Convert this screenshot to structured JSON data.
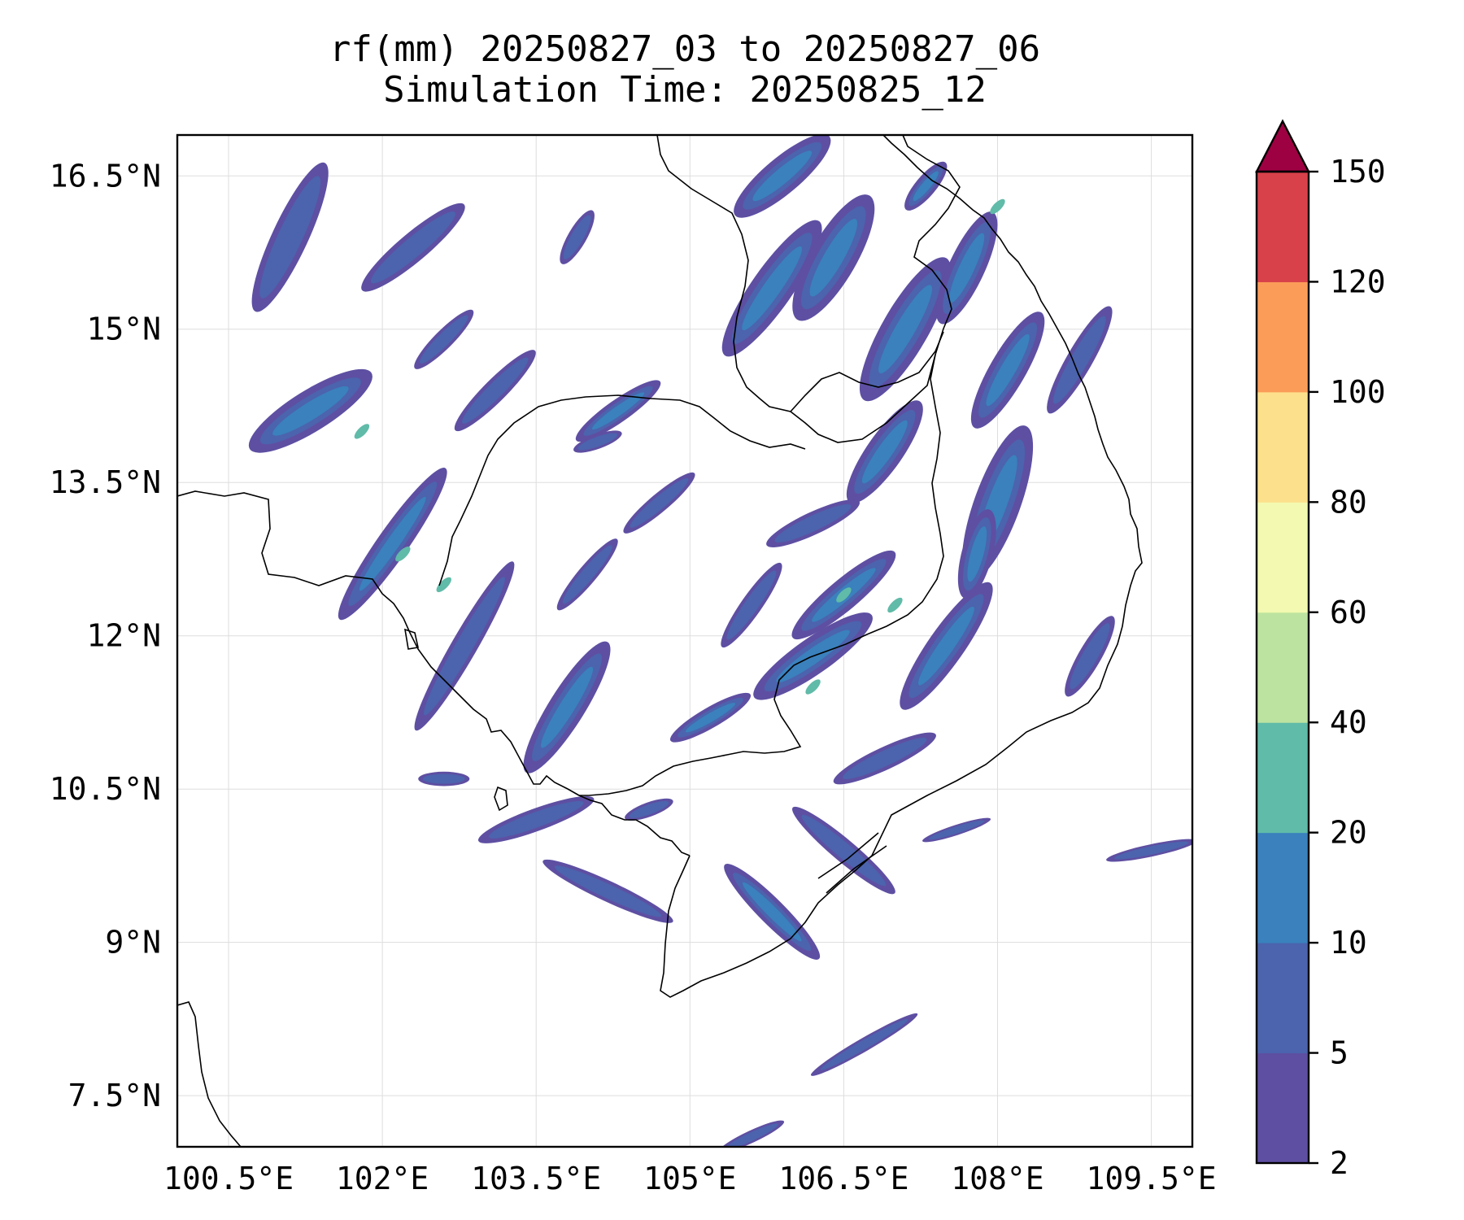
{
  "title": {
    "line1": "rf(mm) 20250827_03 to 20250827_06",
    "line2": "Simulation Time: 20250825_12"
  },
  "map": {
    "lon_range": [
      100.0,
      109.9
    ],
    "lat_range": [
      7.0,
      16.9
    ],
    "lon_ticks": [
      {
        "value": 100.5,
        "label": "100.5°E"
      },
      {
        "value": 102.0,
        "label": "102°E"
      },
      {
        "value": 103.5,
        "label": "103.5°E"
      },
      {
        "value": 105.0,
        "label": "105°E"
      },
      {
        "value": 106.5,
        "label": "106.5°E"
      },
      {
        "value": 108.0,
        "label": "108°E"
      },
      {
        "value": 109.5,
        "label": "109.5°E"
      }
    ],
    "lat_ticks": [
      {
        "value": 16.5,
        "label": "16.5°N"
      },
      {
        "value": 15.0,
        "label": "15°N"
      },
      {
        "value": 13.5,
        "label": "13.5°N"
      },
      {
        "value": 12.0,
        "label": "12°N"
      },
      {
        "value": 10.5,
        "label": "10.5°N"
      },
      {
        "value": 9.0,
        "label": "9°N"
      },
      {
        "value": 7.5,
        "label": "7.5°N"
      }
    ],
    "rain_bands": [
      {
        "lon": 101.3,
        "lat": 14.2,
        "len": 1.4,
        "w": 0.4,
        "ang": -32,
        "c": 1
      },
      {
        "lon": 101.1,
        "lat": 15.9,
        "len": 1.6,
        "w": 0.35,
        "ang": -65,
        "c": 0
      },
      {
        "lon": 102.3,
        "lat": 15.8,
        "len": 1.3,
        "w": 0.28,
        "ang": -40,
        "c": 0
      },
      {
        "lon": 102.1,
        "lat": 12.9,
        "len": 1.8,
        "w": 0.3,
        "ang": -55,
        "c": 1
      },
      {
        "lon": 102.8,
        "lat": 11.9,
        "len": 1.9,
        "w": 0.25,
        "ang": -60,
        "c": 0
      },
      {
        "lon": 103.8,
        "lat": 11.3,
        "len": 1.5,
        "w": 0.35,
        "ang": -58,
        "c": 1
      },
      {
        "lon": 103.5,
        "lat": 10.2,
        "len": 1.2,
        "w": 0.22,
        "ang": -20,
        "c": 0
      },
      {
        "lon": 104.2,
        "lat": 9.5,
        "len": 1.4,
        "w": 0.2,
        "ang": 25,
        "c": 0
      },
      {
        "lon": 103.1,
        "lat": 14.4,
        "len": 1.1,
        "w": 0.22,
        "ang": -45,
        "c": 0
      },
      {
        "lon": 104.3,
        "lat": 14.2,
        "len": 1.0,
        "w": 0.22,
        "ang": -35,
        "c": 1
      },
      {
        "lon": 104.0,
        "lat": 12.6,
        "len": 0.9,
        "w": 0.18,
        "ang": -50,
        "c": 0
      },
      {
        "lon": 104.7,
        "lat": 13.3,
        "len": 0.9,
        "w": 0.18,
        "ang": -40,
        "c": 0
      },
      {
        "lon": 105.2,
        "lat": 11.2,
        "len": 0.9,
        "w": 0.2,
        "ang": -30,
        "c": 1
      },
      {
        "lon": 105.6,
        "lat": 12.3,
        "len": 1.0,
        "w": 0.2,
        "ang": -55,
        "c": 0
      },
      {
        "lon": 105.8,
        "lat": 15.4,
        "len": 1.6,
        "w": 0.4,
        "ang": -55,
        "c": 1
      },
      {
        "lon": 106.4,
        "lat": 15.7,
        "len": 1.4,
        "w": 0.45,
        "ang": -60,
        "c": 1
      },
      {
        "lon": 105.9,
        "lat": 16.5,
        "len": 1.2,
        "w": 0.35,
        "ang": -40,
        "c": 1
      },
      {
        "lon": 107.1,
        "lat": 15.0,
        "len": 1.6,
        "w": 0.45,
        "ang": -60,
        "c": 1
      },
      {
        "lon": 107.7,
        "lat": 15.6,
        "len": 1.2,
        "w": 0.35,
        "ang": -65,
        "c": 1
      },
      {
        "lon": 106.9,
        "lat": 13.8,
        "len": 1.2,
        "w": 0.35,
        "ang": -55,
        "c": 1
      },
      {
        "lon": 108.0,
        "lat": 13.3,
        "len": 1.6,
        "w": 0.45,
        "ang": -70,
        "c": 1
      },
      {
        "lon": 108.1,
        "lat": 14.6,
        "len": 1.3,
        "w": 0.35,
        "ang": -60,
        "c": 1
      },
      {
        "lon": 108.8,
        "lat": 14.7,
        "len": 1.2,
        "w": 0.25,
        "ang": -60,
        "c": 0
      },
      {
        "lon": 107.5,
        "lat": 11.9,
        "len": 1.5,
        "w": 0.35,
        "ang": -55,
        "c": 1
      },
      {
        "lon": 106.2,
        "lat": 11.8,
        "len": 1.4,
        "w": 0.35,
        "ang": -35,
        "c": 1
      },
      {
        "lon": 106.5,
        "lat": 12.4,
        "len": 1.3,
        "w": 0.3,
        "ang": -40,
        "c": 1
      },
      {
        "lon": 106.2,
        "lat": 13.1,
        "len": 1.0,
        "w": 0.22,
        "ang": -25,
        "c": 0
      },
      {
        "lon": 108.9,
        "lat": 11.8,
        "len": 0.9,
        "w": 0.22,
        "ang": -60,
        "c": 0
      },
      {
        "lon": 106.9,
        "lat": 10.8,
        "len": 1.1,
        "w": 0.22,
        "ang": -25,
        "c": 0
      },
      {
        "lon": 106.5,
        "lat": 9.9,
        "len": 1.3,
        "w": 0.22,
        "ang": 40,
        "c": 0
      },
      {
        "lon": 105.8,
        "lat": 9.3,
        "len": 1.3,
        "w": 0.25,
        "ang": 45,
        "c": 1
      },
      {
        "lon": 106.7,
        "lat": 8.0,
        "len": 1.2,
        "w": 0.13,
        "ang": -30,
        "c": 0
      },
      {
        "lon": 109.5,
        "lat": 9.9,
        "len": 0.9,
        "w": 0.12,
        "ang": -12,
        "c": 0
      },
      {
        "lon": 107.6,
        "lat": 10.1,
        "len": 0.7,
        "w": 0.1,
        "ang": -18,
        "c": 0
      },
      {
        "lon": 105.6,
        "lat": 7.1,
        "len": 0.7,
        "w": 0.12,
        "ang": -25,
        "c": 0
      },
      {
        "lon": 102.6,
        "lat": 14.9,
        "len": 0.8,
        "w": 0.18,
        "ang": -45,
        "c": 0
      },
      {
        "lon": 103.9,
        "lat": 15.9,
        "len": 0.6,
        "w": 0.18,
        "ang": -60,
        "c": 0
      },
      {
        "lon": 102.6,
        "lat": 10.6,
        "len": 0.5,
        "w": 0.14,
        "ang": 0,
        "c": 0
      },
      {
        "lon": 104.6,
        "lat": 10.3,
        "len": 0.5,
        "w": 0.14,
        "ang": -20,
        "c": 0
      },
      {
        "lon": 107.8,
        "lat": 12.8,
        "len": 0.9,
        "w": 0.3,
        "ang": -75,
        "c": 1
      },
      {
        "lon": 104.1,
        "lat": 13.9,
        "len": 0.5,
        "w": 0.14,
        "ang": -20,
        "c": 0
      },
      {
        "lon": 107.3,
        "lat": 16.4,
        "len": 0.6,
        "w": 0.2,
        "ang": -50,
        "c": 1
      }
    ],
    "rain_cores": [
      {
        "lon": 101.8,
        "lat": 14.0,
        "c": 3
      },
      {
        "lon": 102.2,
        "lat": 12.8,
        "c": 3
      },
      {
        "lon": 102.6,
        "lat": 12.5,
        "c": 3
      },
      {
        "lon": 106.5,
        "lat": 12.4,
        "c": 3
      },
      {
        "lon": 106.2,
        "lat": 11.5,
        "c": 3
      },
      {
        "lon": 107.0,
        "lat": 12.3,
        "c": 3
      },
      {
        "lon": 108.0,
        "lat": 16.2,
        "c": 3
      }
    ],
    "line_color": "#000000"
  },
  "colorbar": {
    "levels": [
      2,
      5,
      10,
      20,
      40,
      60,
      80,
      100,
      120,
      150
    ],
    "labels": [
      "2",
      "5",
      "10",
      "20",
      "40",
      "60",
      "80",
      "100",
      "120",
      "150"
    ],
    "colors": [
      "#5e4fa2",
      "#4c63ad",
      "#3a81bd",
      "#60bba8",
      "#bde3a0",
      "#f3f9b0",
      "#fde08b",
      "#fb9d59",
      "#d8414a"
    ],
    "extend_color": "#9e0142",
    "extend": "max"
  }
}
